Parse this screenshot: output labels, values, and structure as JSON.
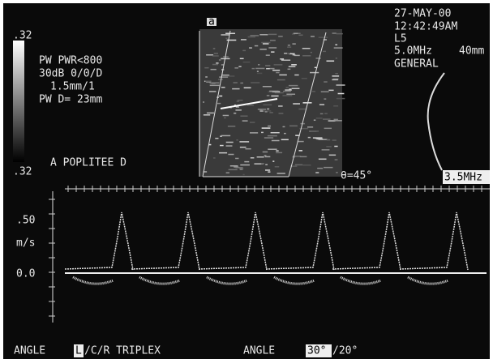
{
  "header": {
    "date": "27-MAY-00",
    "time": "12:42:49AM",
    "probe": "L5",
    "frequency": "5.0MHz",
    "depth": "40mm",
    "preset": "GENERAL"
  },
  "grayscale": {
    "top": ".32",
    "bottom": ".32"
  },
  "settings": [
    "PW PWR<800",
    "30dB 0/0/D",
    "1.5mm/1",
    "PW D= 23mm"
  ],
  "site": "A POPLITEE D",
  "image_marker": "a",
  "angle": "θ=45°",
  "doppler_frequency": "3.5MHz",
  "scale": {
    "upper": ".50",
    "unit": "m/s",
    "zero": "0.0"
  },
  "footer": {
    "angle_label": "ANGLE",
    "mode_selected": "L",
    "mode_rest": "/C/R TRIPLEX",
    "angle2_label": "ANGLE",
    "angle2_selected": "30°",
    "angle2_rest": "/20°"
  }
}
